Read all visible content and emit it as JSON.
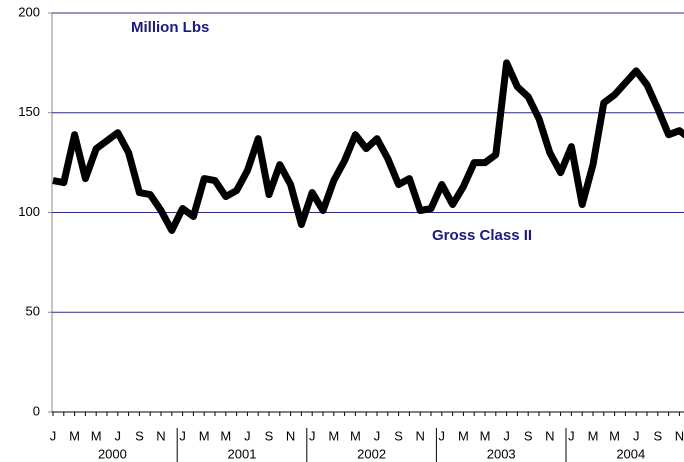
{
  "chart_data": {
    "type": "line",
    "annotations": [
      "Million Lbs",
      "Gross Class II"
    ],
    "categories": [
      "J",
      null,
      "M",
      null,
      "M",
      null,
      "J",
      null,
      "S",
      null,
      "N",
      null,
      "J",
      null,
      "M",
      null,
      "M",
      null,
      "J",
      null,
      "S",
      null,
      "N",
      null,
      "J",
      null,
      "M",
      null,
      "M",
      null,
      "J",
      null,
      "S",
      null,
      "N",
      null,
      "J",
      null,
      "M",
      null,
      "M",
      null,
      "J",
      null,
      "S",
      null,
      "N",
      null,
      "J",
      null,
      "M",
      null,
      "M",
      null,
      "J",
      null,
      "S",
      null,
      "N",
      null
    ],
    "x_groups": [
      "2000",
      "2001",
      "2002",
      "2003",
      "2004"
    ],
    "series": [
      {
        "color": "#000000",
        "values": [
          116,
          115,
          139,
          117,
          132,
          136,
          140,
          130,
          110,
          109,
          101,
          91,
          102,
          98,
          117,
          116,
          108,
          111,
          121,
          137,
          109,
          124,
          114,
          94,
          110,
          101,
          116,
          126,
          139,
          132,
          137,
          127,
          114,
          117,
          101,
          102,
          114,
          104,
          113,
          125,
          125,
          129,
          175,
          163,
          158,
          147,
          130,
          120,
          133,
          104,
          124,
          155,
          159,
          165,
          171,
          164,
          152,
          139,
          141,
          137
        ]
      }
    ],
    "ylim": [
      0,
      200
    ],
    "yticks": [
      0,
      50,
      100,
      150,
      200
    ],
    "grid": true,
    "grid_color": "#2b2b8c"
  }
}
